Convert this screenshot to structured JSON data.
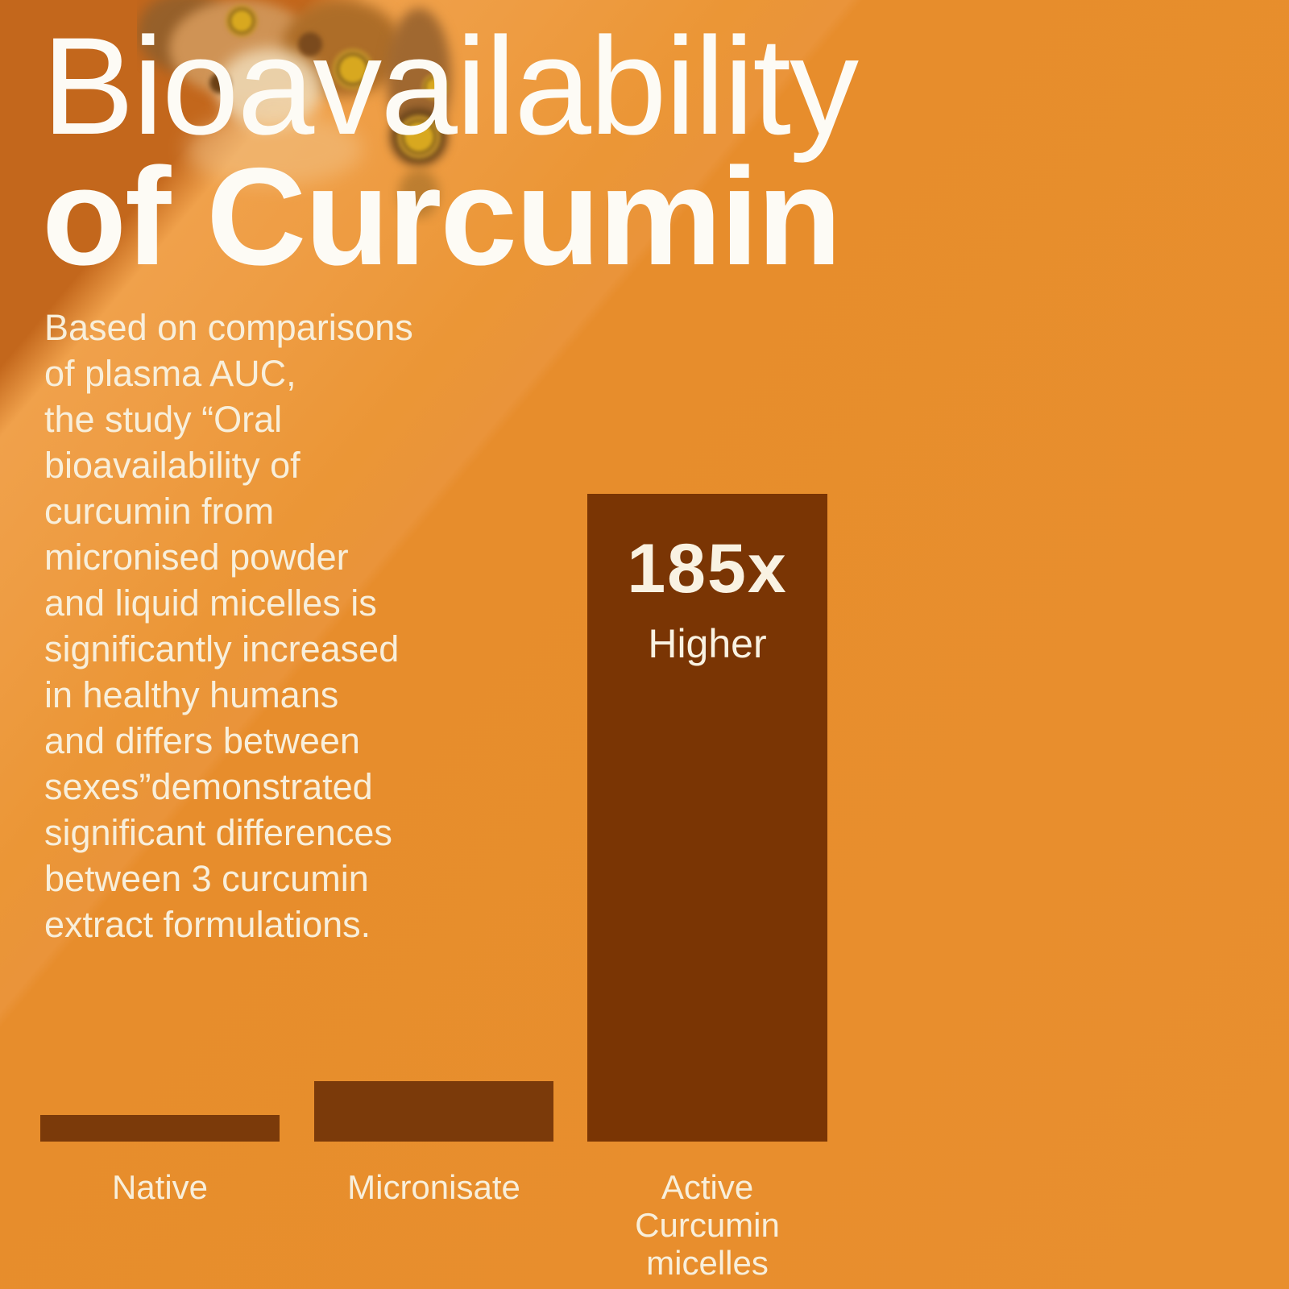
{
  "title": {
    "line1": "Bioavailability",
    "line2": "of Curcumin"
  },
  "intro": {
    "text": "Based on comparisons\nof plasma AUC,\nthe study “Oral\nbioavailability of\ncurcumin from\nmicronised powder\nand liquid micelles is\nsignificantly increased\nin healthy humans\nand differs between\nsexes”demonstrated\nsignificant differences\nbetween 3 curcumin\nextract formulations."
  },
  "chart_data": {
    "type": "bar",
    "title": "Bioavailability of Curcumin",
    "categories": [
      "Native",
      "Micronisate",
      "Active Curcumin micelles"
    ],
    "values_relative_height": [
      0.041,
      0.093,
      1.0
    ],
    "bars": [
      {
        "label": "Native",
        "display_label": "Native",
        "relative_height": 0.041
      },
      {
        "label": "Micronisate",
        "display_label": "Micronisate",
        "relative_height": 0.093
      },
      {
        "label": "Active Curcumin micelles",
        "display_label": "Active\nCurcumin\nmicelles",
        "relative_height": 1.0,
        "annotation_value": "185x",
        "annotation_label": "Higher"
      }
    ],
    "annotation": {
      "value": "185x",
      "label": "Higher",
      "on_category": "Active Curcumin micelles"
    },
    "xlabel": "",
    "ylabel": "",
    "grid": false,
    "legend": false
  },
  "colors": {
    "background_base": "#e88f2e",
    "background_dark_corner": "#c3671c",
    "background_highlight_band": "#f0a14b",
    "bar_small": "#7b3a0a",
    "bar_large": "#7a3504",
    "text_white": "#fdfbf5",
    "text_cream": "#f8efdb",
    "annotation_text": "#f9f2e2"
  },
  "decor": {
    "turmeric_image_alt": "turmeric root pieces photo at top edge"
  }
}
